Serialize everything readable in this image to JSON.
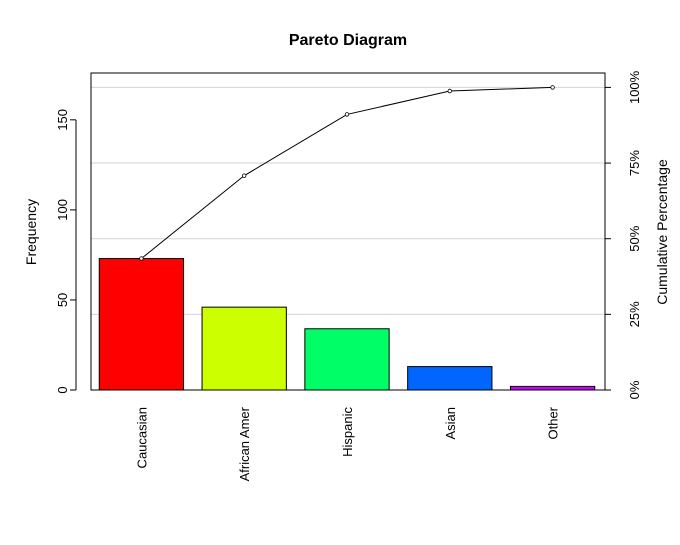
{
  "chart_data": {
    "type": "bar",
    "title": "Pareto Diagram",
    "ylabel": "Frequency",
    "y2label": "Cumulative Percentage",
    "xlabel": "",
    "categories": [
      "Caucasian",
      "African Amer",
      "Hispanic",
      "Asian",
      "Other"
    ],
    "values": [
      73,
      46,
      34,
      13,
      2
    ],
    "bar_colors": [
      "#ff0000",
      "#ccff00",
      "#00ff66",
      "#0066ff",
      "#cc00ff"
    ],
    "cumulative": [
      73,
      119,
      153,
      166,
      168
    ],
    "cumulative_percent": [
      43.5,
      70.8,
      91.1,
      98.8,
      100
    ],
    "ylim": [
      0,
      176
    ],
    "yticks": [
      0,
      50,
      100,
      150
    ],
    "y2ticks": [
      "0%",
      "25%",
      "50%",
      "75%",
      "100%"
    ],
    "grid": "horizontal at cumulative percentage ticks",
    "series": [
      {
        "type": "bar",
        "values": [
          73,
          46,
          34,
          13,
          2
        ]
      },
      {
        "type": "line",
        "values": [
          73,
          119,
          153,
          166,
          168
        ]
      }
    ]
  }
}
